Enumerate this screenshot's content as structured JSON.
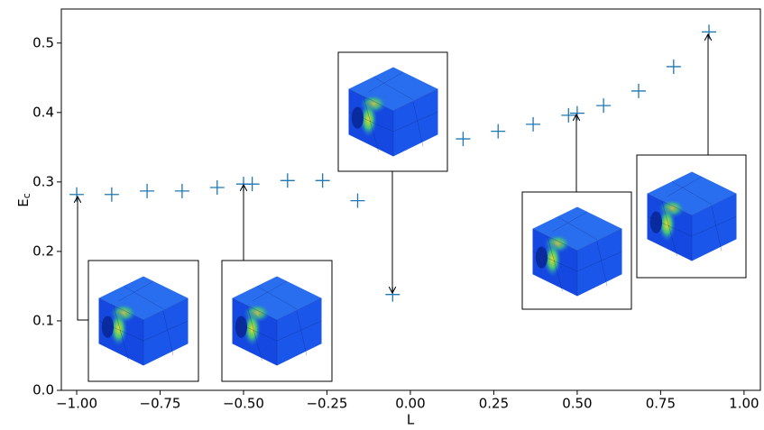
{
  "chart_data": {
    "type": "scatter",
    "xlabel": "L",
    "ylabel_main": "E",
    "ylabel_sub": "c",
    "color": "#1f77b4",
    "marker": "+",
    "x": [
      -1.0,
      -0.895,
      -0.789,
      -0.684,
      -0.579,
      -0.5,
      -0.474,
      -0.368,
      -0.263,
      -0.158,
      -0.053,
      0.158,
      0.263,
      0.368,
      0.474,
      0.5,
      0.579,
      0.684,
      0.789,
      0.895
    ],
    "values": [
      0.282,
      0.282,
      0.287,
      0.287,
      0.292,
      0.297,
      0.297,
      0.302,
      0.302,
      0.273,
      0.138,
      0.362,
      0.373,
      0.383,
      0.396,
      0.399,
      0.41,
      0.431,
      0.466,
      0.516
    ],
    "xlim": [
      -1.046,
      1.049
    ],
    "ylim": [
      0,
      0.549
    ],
    "xticks": [
      {
        "value": -1.0,
        "label": "−1.00"
      },
      {
        "value": -0.75,
        "label": "−0.75"
      },
      {
        "value": -0.5,
        "label": "−0.50"
      },
      {
        "value": -0.25,
        "label": "−0.25"
      },
      {
        "value": 0,
        "label": "0.00"
      },
      {
        "value": 0.25,
        "label": "0.25"
      },
      {
        "value": 0.5,
        "label": "0.50"
      },
      {
        "value": 0.75,
        "label": "0.75"
      },
      {
        "value": 1.0,
        "label": "1.00"
      }
    ],
    "yticks": [
      {
        "value": 0,
        "label": "0.0"
      },
      {
        "value": 0.1,
        "label": "0.1"
      },
      {
        "value": 0.2,
        "label": "0.2"
      },
      {
        "value": 0.3,
        "label": "0.3"
      },
      {
        "value": 0.4,
        "label": "0.4"
      },
      {
        "value": 0.5,
        "label": "0.5"
      }
    ]
  }
}
